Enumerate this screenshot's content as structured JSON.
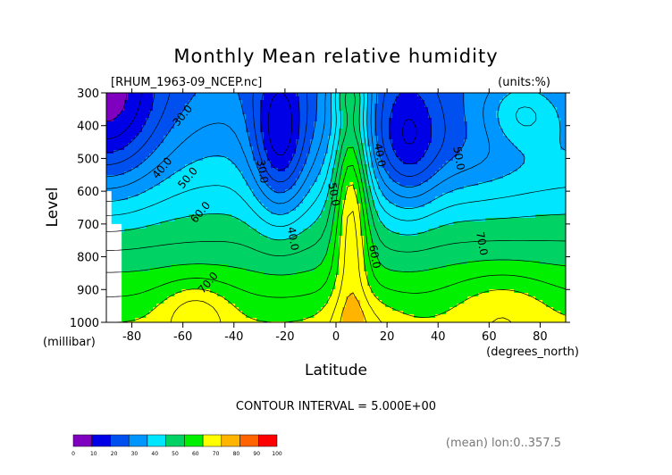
{
  "chart_data": {
    "type": "heatmap",
    "title": "Monthly Mean relative humidity",
    "file_label": "[RHUM_1963-09_NCEP.nc]",
    "units_label": "(units:%)",
    "xlabel": "Latitude",
    "xunit": "(degrees_north)",
    "ylabel": "Level",
    "yunit": "(millibar)",
    "x_ticks": [
      "-80",
      "-60",
      "-40",
      "-20",
      "0",
      "20",
      "40",
      "60",
      "80"
    ],
    "y_ticks": [
      "300",
      "400",
      "500",
      "600",
      "700",
      "800",
      "900",
      "1000"
    ],
    "xlim": [
      -90,
      90
    ],
    "ylim": [
      1000,
      300
    ],
    "contour_interval_text": "CONTOUR INTERVAL = 5.000E+00",
    "footer_text": "(mean) lon:0..357.5",
    "colorbar": {
      "tick_labels": [
        "0",
        "10",
        "20",
        "30",
        "40",
        "50",
        "60",
        "70",
        "80",
        "90",
        "100"
      ],
      "colors": [
        "#8000c0",
        "#0000e6",
        "#0050f0",
        "#0096ff",
        "#00e6ff",
        "#00d264",
        "#00f000",
        "#ffff00",
        "#ffb400",
        "#ff6400",
        "#ff0000"
      ]
    },
    "contour_labels": [
      {
        "text": "30.0",
        "lat": -60,
        "lev": 370
      },
      {
        "text": "40.0",
        "lat": -68,
        "lev": 530
      },
      {
        "text": "50.0",
        "lat": -58,
        "lev": 560
      },
      {
        "text": "60.0",
        "lat": -53,
        "lev": 665
      },
      {
        "text": "70.0",
        "lat": -50,
        "lev": 880
      },
      {
        "text": "30.0",
        "lat": -29,
        "lev": 540
      },
      {
        "text": "40.0",
        "lat": -17,
        "lev": 745
      },
      {
        "text": "50.0",
        "lat": -1,
        "lev": 610
      },
      {
        "text": "60.0",
        "lat": 15,
        "lev": 800
      },
      {
        "text": "40.0",
        "lat": 17,
        "lev": 490
      },
      {
        "text": "50.0",
        "lat": 48,
        "lev": 500
      },
      {
        "text": "70.0",
        "lat": 57,
        "lev": 760
      }
    ]
  }
}
